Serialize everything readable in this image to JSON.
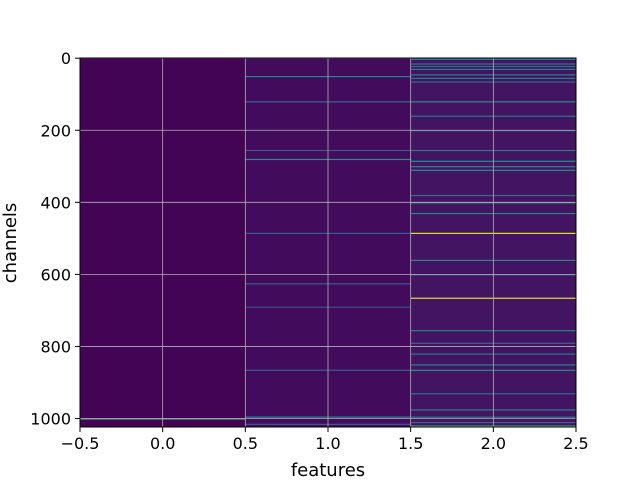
{
  "chart_data": {
    "type": "heatmap",
    "title": "",
    "xlabel": "features",
    "ylabel": "channels",
    "xlim": [
      -0.5,
      2.5
    ],
    "ylim": [
      1023.5,
      -0.5
    ],
    "y_inverted": true,
    "grid": true,
    "colormap": "viridis",
    "background_color": "#440154",
    "x_ticks": [
      -0.5,
      0.0,
      0.5,
      1.0,
      1.5,
      2.0,
      2.5
    ],
    "x_tick_labels": [
      "−0.5",
      "0.0",
      "0.5",
      "1.0",
      "1.5",
      "2.0",
      "2.5"
    ],
    "y_ticks": [
      0,
      200,
      400,
      600,
      800,
      1000
    ],
    "y_tick_labels": [
      "0",
      "200",
      "400",
      "600",
      "800",
      "1000"
    ],
    "columns": [
      {
        "feature": 0,
        "base_value": 0.01,
        "bright_rows": [
          {
            "channel": 1000,
            "value": 0.65
          }
        ]
      },
      {
        "feature": 1,
        "base_value": 0.03,
        "bright_rows": [
          {
            "channel": 50,
            "value": 0.45
          },
          {
            "channel": 120,
            "value": 0.35
          },
          {
            "channel": 255,
            "value": 0.3
          },
          {
            "channel": 280,
            "value": 0.5
          },
          {
            "channel": 485,
            "value": 0.3
          },
          {
            "channel": 625,
            "value": 0.3
          },
          {
            "channel": 690,
            "value": 0.25
          },
          {
            "channel": 865,
            "value": 0.3
          },
          {
            "channel": 995,
            "value": 0.45
          },
          {
            "channel": 1015,
            "value": 0.3
          }
        ]
      },
      {
        "feature": 2,
        "base_value": 0.06,
        "bright_rows": [
          {
            "channel": 2,
            "value": 0.45
          },
          {
            "channel": 15,
            "value": 0.4
          },
          {
            "channel": 22,
            "value": 0.35
          },
          {
            "channel": 30,
            "value": 0.4
          },
          {
            "channel": 45,
            "value": 0.45
          },
          {
            "channel": 55,
            "value": 0.4
          },
          {
            "channel": 65,
            "value": 0.35
          },
          {
            "channel": 120,
            "value": 0.5
          },
          {
            "channel": 160,
            "value": 0.4
          },
          {
            "channel": 200,
            "value": 0.35
          },
          {
            "channel": 255,
            "value": 0.4
          },
          {
            "channel": 285,
            "value": 0.5
          },
          {
            "channel": 300,
            "value": 0.45
          },
          {
            "channel": 310,
            "value": 0.5
          },
          {
            "channel": 380,
            "value": 0.35
          },
          {
            "channel": 400,
            "value": 0.55
          },
          {
            "channel": 430,
            "value": 0.45
          },
          {
            "channel": 485,
            "value": 0.95
          },
          {
            "channel": 560,
            "value": 0.45
          },
          {
            "channel": 600,
            "value": 0.35
          },
          {
            "channel": 665,
            "value": 0.95
          },
          {
            "channel": 755,
            "value": 0.45
          },
          {
            "channel": 790,
            "value": 0.35
          },
          {
            "channel": 820,
            "value": 0.4
          },
          {
            "channel": 850,
            "value": 0.45
          },
          {
            "channel": 865,
            "value": 0.5
          },
          {
            "channel": 930,
            "value": 0.35
          },
          {
            "channel": 975,
            "value": 0.45
          },
          {
            "channel": 995,
            "value": 0.4
          },
          {
            "channel": 1010,
            "value": 0.35
          },
          {
            "channel": 1020,
            "value": 0.7
          }
        ]
      }
    ]
  }
}
